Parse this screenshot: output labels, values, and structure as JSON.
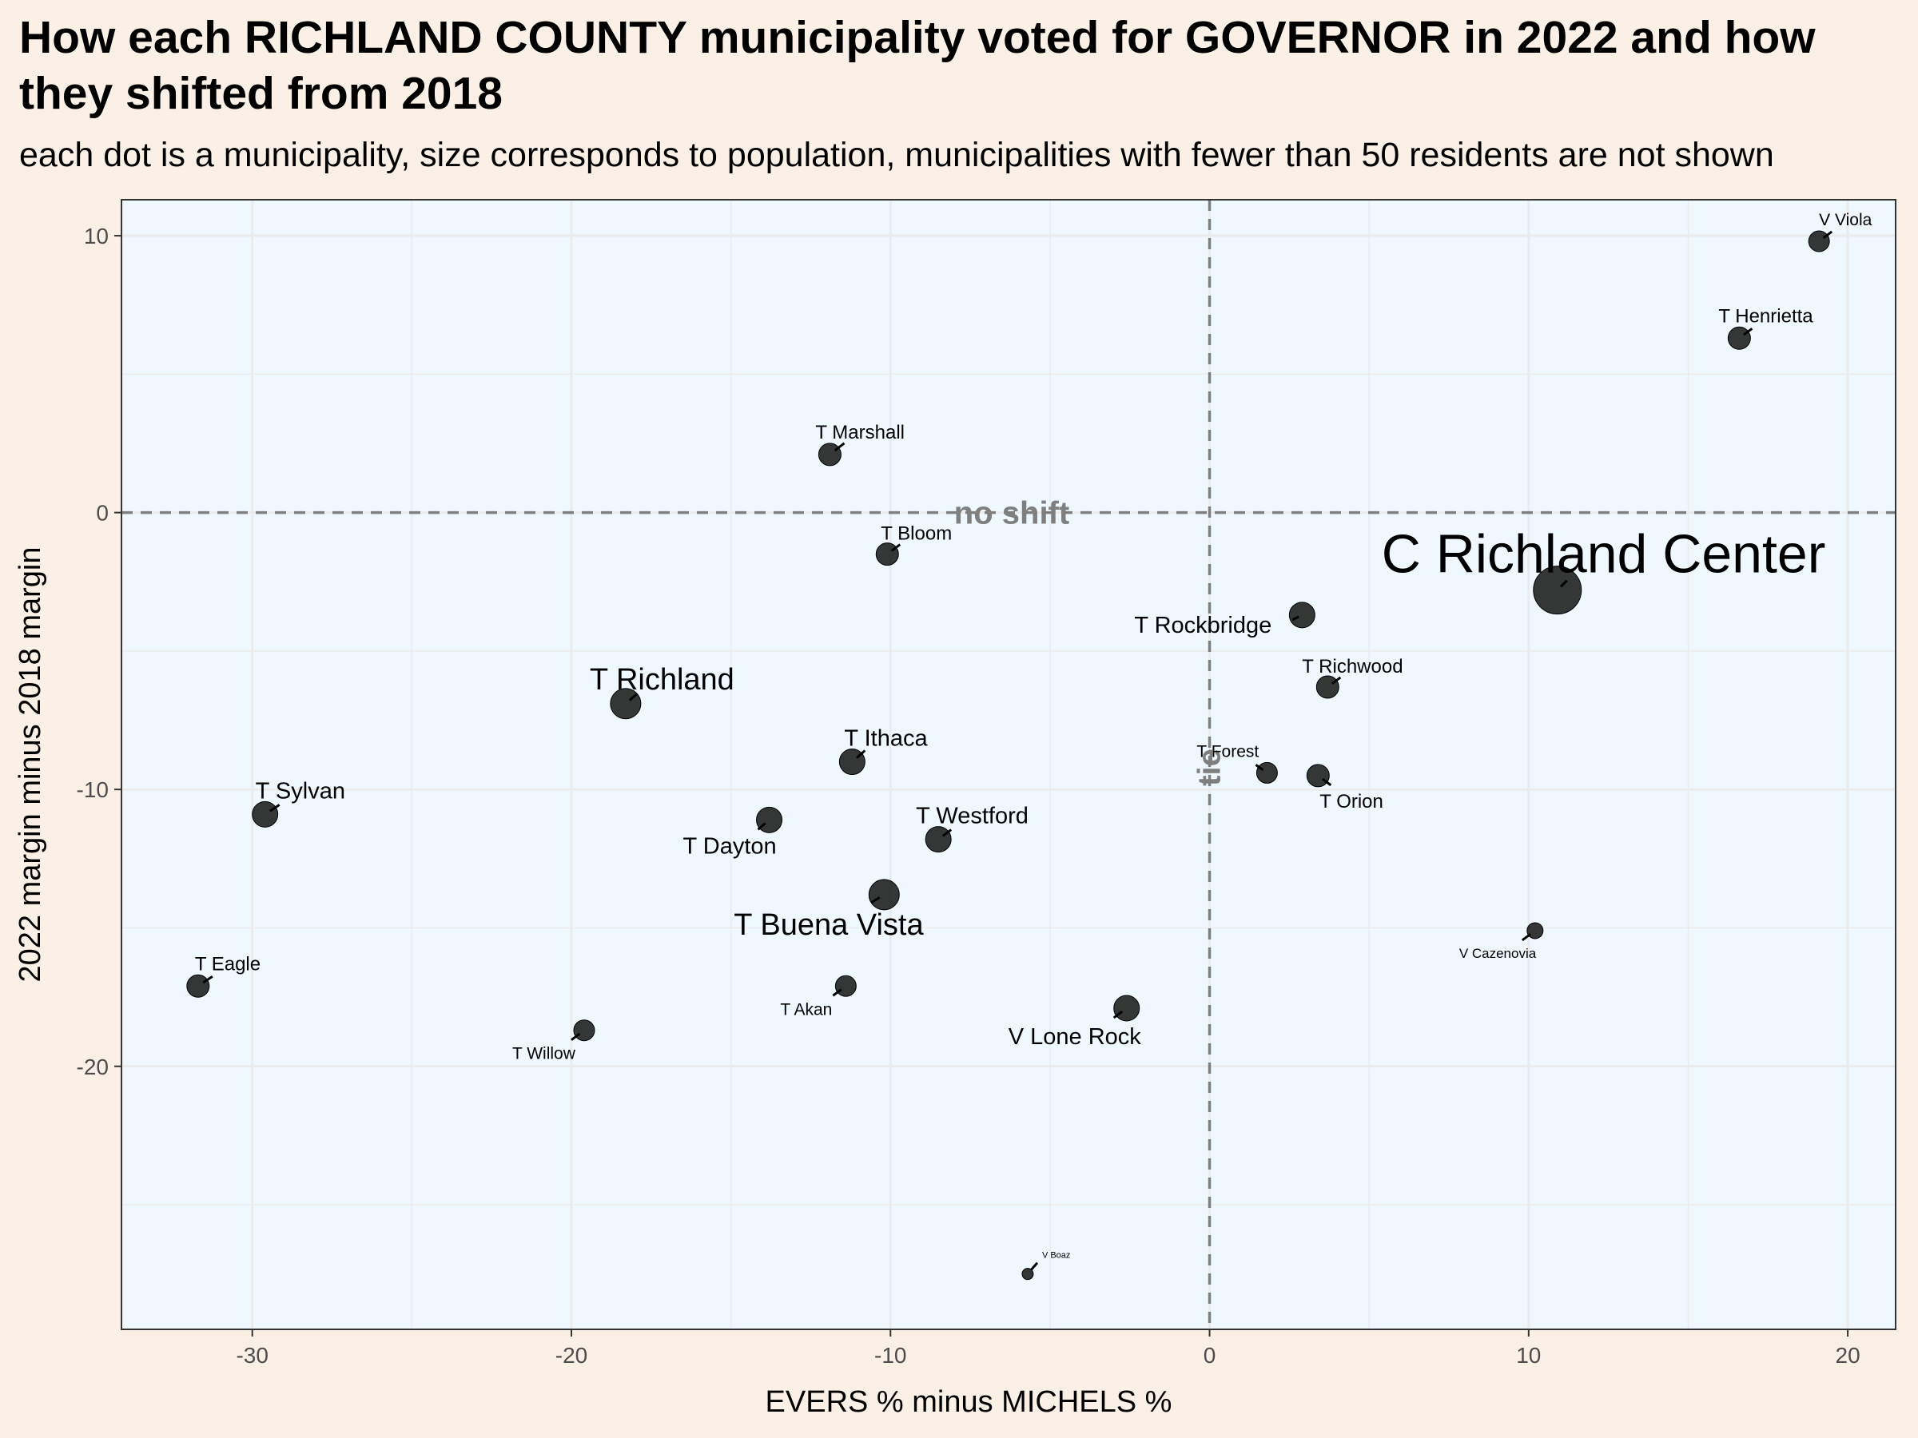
{
  "title": "How each RICHLAND COUNTY municipality voted for GOVERNOR in 2022 and how they shifted from 2018",
  "subtitle": "each dot is a municipality, size corresponds to population, municipalities with fewer than 50 residents are not shown",
  "colors": {
    "page_background": "#faf0e6",
    "panel_background": "#f0f8ff",
    "grid": "#ebebeb",
    "point_fill": "#1a1a1a",
    "reference_line": "#7f7f7f"
  },
  "chart_data": {
    "type": "scatter",
    "xlabel": "EVERS % minus MICHELS %",
    "ylabel": "2022 margin minus 2018 margin",
    "xlim": [
      -34.1,
      21.5
    ],
    "ylim": [
      -29.5,
      11.3
    ],
    "x_ticks": [
      -30,
      -20,
      -10,
      0,
      10,
      20
    ],
    "x_tick_labels": [
      "-30",
      "-20",
      "-10",
      "0",
      "10",
      "20"
    ],
    "y_ticks": [
      -20,
      -10,
      0,
      10
    ],
    "y_tick_labels": [
      "-20",
      "-10",
      "0",
      "10"
    ],
    "grid": true,
    "reference_lines": {
      "horizontal": {
        "y": 0,
        "label": "no shift"
      },
      "vertical": {
        "x": 0,
        "label": "tie"
      }
    },
    "points": [
      {
        "name": "V Viola",
        "x": 19.1,
        "y": 9.8,
        "label_size": "small"
      },
      {
        "name": "T Henrietta",
        "x": 16.6,
        "y": 6.3,
        "label_size": "medium"
      },
      {
        "name": "T Marshall",
        "x": -11.9,
        "y": 2.1,
        "label_size": "medium"
      },
      {
        "name": "T Bloom",
        "x": -10.1,
        "y": -1.5,
        "label_size": "medium"
      },
      {
        "name": "C Richland Center",
        "x": 10.9,
        "y": -2.8,
        "label_size": "huge"
      },
      {
        "name": "T Rockbridge",
        "x": 2.9,
        "y": -3.7,
        "label_size": "large"
      },
      {
        "name": "T Richwood",
        "x": 3.7,
        "y": -6.3,
        "label_size": "medium"
      },
      {
        "name": "T Richland",
        "x": -18.3,
        "y": -6.9,
        "label_size": "xlarge"
      },
      {
        "name": "T Ithaca",
        "x": -11.2,
        "y": -9.0,
        "label_size": "large"
      },
      {
        "name": "T Forest",
        "x": 1.8,
        "y": -9.4,
        "label_size": "small"
      },
      {
        "name": "T Orion",
        "x": 3.4,
        "y": -9.5,
        "label_size": "medium"
      },
      {
        "name": "T Sylvan",
        "x": -29.6,
        "y": -10.9,
        "label_size": "large"
      },
      {
        "name": "T Dayton",
        "x": -13.8,
        "y": -11.1,
        "label_size": "large"
      },
      {
        "name": "T Westford",
        "x": -8.5,
        "y": -11.8,
        "label_size": "large"
      },
      {
        "name": "T Buena Vista",
        "x": -10.2,
        "y": -13.8,
        "label_size": "xlarge"
      },
      {
        "name": "V Cazenovia",
        "x": 10.2,
        "y": -15.1,
        "label_size": "tiny"
      },
      {
        "name": "T Eagle",
        "x": -31.7,
        "y": -17.1,
        "label_size": "medium"
      },
      {
        "name": "T Akan",
        "x": -11.4,
        "y": -17.1,
        "label_size": "small"
      },
      {
        "name": "V Lone Rock",
        "x": -2.6,
        "y": -17.9,
        "label_size": "large"
      },
      {
        "name": "T Willow",
        "x": -19.6,
        "y": -18.7,
        "label_size": "small"
      },
      {
        "name": "V Boaz",
        "x": -5.7,
        "y": -27.5,
        "label_size": "micro"
      }
    ]
  }
}
